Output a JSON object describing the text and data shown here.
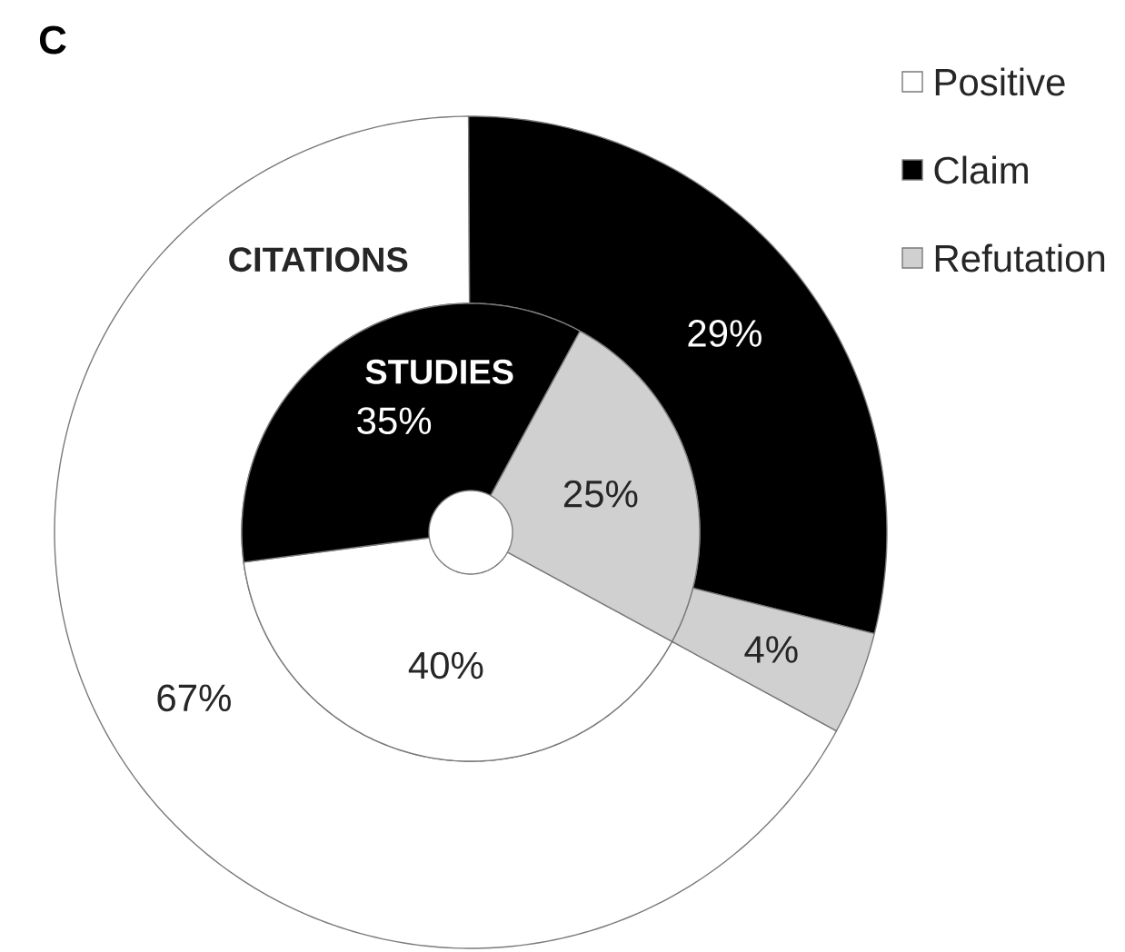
{
  "chart_data": {
    "type": "donut",
    "title": "C",
    "categories": [
      "Positive",
      "Claim",
      "Refutation"
    ],
    "colors": [
      "#ffffff",
      "#000000",
      "#d0d0d0"
    ],
    "series": [
      {
        "name": "CITATIONS",
        "values": [
          67,
          29,
          4
        ],
        "value_labels": [
          "67%",
          "29%",
          "4%"
        ]
      },
      {
        "name": "STUDIES",
        "values": [
          40,
          35,
          25
        ],
        "value_labels": [
          "40%",
          "35%",
          "25%"
        ]
      }
    ],
    "legend": "top right"
  }
}
